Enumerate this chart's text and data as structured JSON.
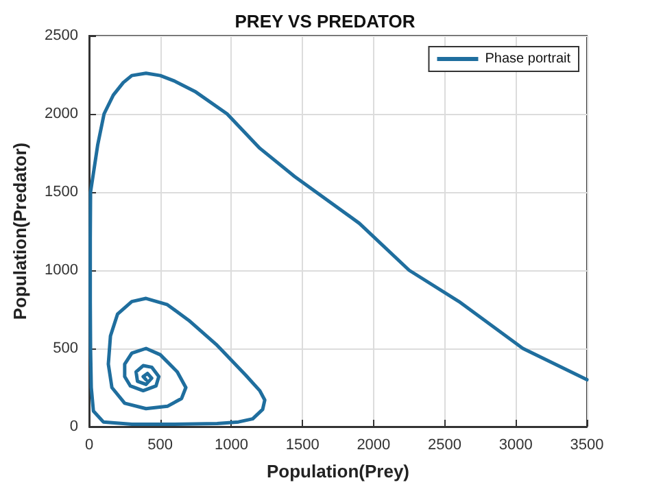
{
  "chart_data": {
    "type": "line",
    "title": "PREY VS PREDATOR",
    "xlabel": "Population(Prey)",
    "ylabel": "Population(Predator)",
    "series": [
      {
        "name": "Phase portrait",
        "color": "#1f6e9e",
        "x": [
          3500,
          3050,
          2600,
          2250,
          1900,
          1444,
          1200,
          970,
          750,
          600,
          500,
          400,
          300,
          240,
          170,
          105,
          60,
          35,
          10,
          8,
          8,
          10,
          15,
          30,
          100,
          300,
          600,
          900,
          1050,
          1150,
          1220,
          1235,
          1200,
          1100,
          900,
          700,
          550,
          400,
          300,
          200,
          150,
          135,
          160,
          250,
          400,
          550,
          650,
          680,
          620,
          500,
          400,
          300,
          250,
          250,
          290,
          380,
          470,
          490,
          440,
          380,
          330,
          340,
          400,
          440,
          410,
          380,
          400
        ],
        "values": [
          300,
          500,
          800,
          1000,
          1300,
          1600,
          1780,
          2000,
          2140,
          2210,
          2245,
          2260,
          2245,
          2200,
          2120,
          2000,
          1800,
          1650,
          1500,
          1200,
          800,
          500,
          250,
          100,
          30,
          15,
          15,
          20,
          30,
          50,
          110,
          170,
          230,
          330,
          520,
          680,
          780,
          820,
          800,
          720,
          580,
          400,
          250,
          150,
          115,
          130,
          180,
          250,
          350,
          460,
          500,
          470,
          400,
          320,
          260,
          230,
          260,
          320,
          380,
          390,
          350,
          290,
          270,
          310,
          340,
          320,
          300
        ]
      }
    ],
    "xlim": [
      0,
      3500
    ],
    "xticks": [
      0,
      500,
      1000,
      1500,
      2000,
      2500,
      3000,
      3500
    ],
    "ylim": [
      0,
      2500
    ],
    "yticks": [
      0,
      500,
      1000,
      1500,
      2000,
      2500
    ],
    "grid": true,
    "legend": "top right",
    "line_style": "solid",
    "marker": "none"
  }
}
